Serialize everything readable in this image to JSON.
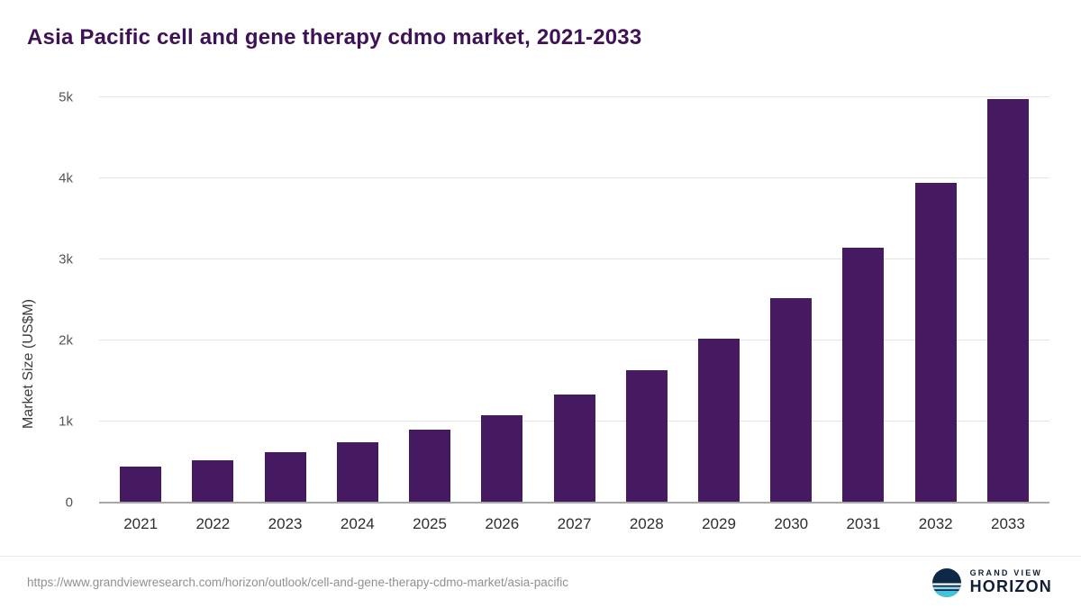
{
  "title": "Asia Pacific cell and gene therapy cdmo market, 2021-2033",
  "chart_data": {
    "type": "bar",
    "title": "Asia Pacific cell and gene therapy cdmo market, 2021-2033",
    "categories": [
      "2021",
      "2022",
      "2023",
      "2024",
      "2025",
      "2026",
      "2027",
      "2028",
      "2029",
      "2030",
      "2031",
      "2032",
      "2033"
    ],
    "values": [
      440,
      520,
      620,
      740,
      900,
      1080,
      1330,
      1630,
      2020,
      2520,
      3140,
      3950,
      4980
    ],
    "xlabel": "",
    "ylabel": "Market Size (US$M)",
    "ylim": [
      0,
      5000
    ],
    "yticks": [
      "0",
      "1k",
      "2k",
      "3k",
      "4k",
      "5k"
    ],
    "ytick_values": [
      0,
      1000,
      2000,
      3000,
      4000,
      5000
    ],
    "grid": true,
    "legend": "none",
    "bar_color": "#451a61"
  },
  "colors": {
    "title_text": "#3f1256",
    "bar": "#451a61",
    "gridline": "#e3e3e3",
    "axis_line": "#a8a8a8",
    "tick_text": "#555555",
    "logo_navy": "#101f38",
    "logo_teal": "#45c3dd"
  },
  "footer": {
    "source_url": "https://www.grandviewresearch.com/horizon/outlook/cell-and-gene-therapy-cdmo-market/asia-pacific",
    "logo": {
      "line1": "GRAND VIEW",
      "line2": "HORIZON"
    }
  }
}
